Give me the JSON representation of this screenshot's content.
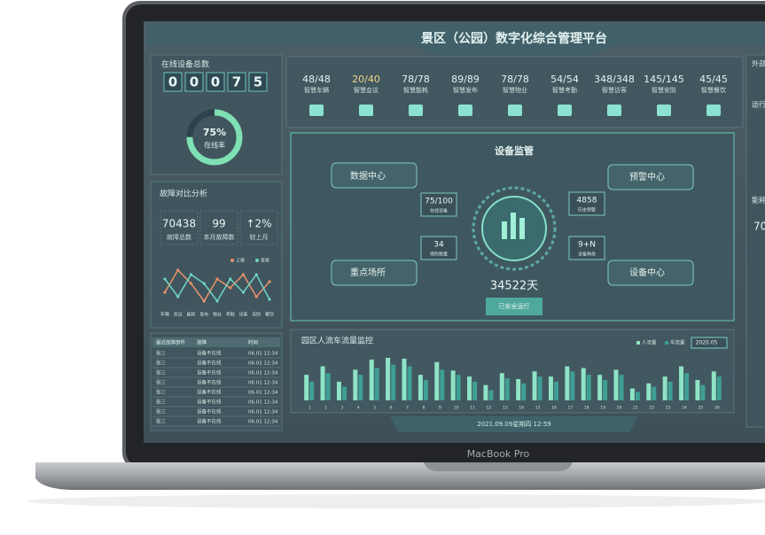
{
  "device": "MacBook Pro",
  "header": {
    "title": "景区（公园）数字化综合管理平台",
    "datetime": "2021.09.09星期四 12:59"
  },
  "online": {
    "title": "在线设备总数",
    "digits": [
      "0",
      "0",
      "0",
      "7",
      "5"
    ],
    "rate": {
      "value": 75,
      "label": "75%"
    },
    "rate_label": "在线率"
  },
  "stats": [
    {
      "count": "48/48",
      "label": "智慧车辆"
    },
    {
      "count": "20/40",
      "label": "智慧会议"
    },
    {
      "count": "78/78",
      "label": "智慧能耗"
    },
    {
      "count": "89/89",
      "label": "智慧发布"
    },
    {
      "count": "78/78",
      "label": "智慧物业"
    },
    {
      "count": "54/54",
      "label": "智慧考勤"
    },
    {
      "count": "348/348",
      "label": "智慧访客"
    },
    {
      "count": "145/145",
      "label": "智慧安防"
    },
    {
      "count": "45/45",
      "label": "智慧餐饮"
    }
  ],
  "faults": {
    "title": "故障对比分析",
    "kpis": [
      {
        "value": "70438",
        "label": "故障总数"
      },
      {
        "value": "99",
        "label": "本月故障数"
      },
      {
        "value": "↑2%",
        "label": "较上月"
      }
    ],
    "chart": {
      "type": "line",
      "categories": [
        "车辆",
        "会议",
        "能耗",
        "发布",
        "物业",
        "考勤",
        "访客",
        "安防",
        "餐饮"
      ],
      "series": [
        {
          "name": "上报",
          "color": "#e8936a",
          "values": [
            30,
            55,
            40,
            20,
            45,
            35,
            50,
            25,
            42
          ]
        },
        {
          "name": "查看",
          "color": "#6fd6c6",
          "values": [
            45,
            25,
            50,
            40,
            20,
            45,
            30,
            50,
            22
          ]
        }
      ]
    }
  },
  "monitor": {
    "title": "设备监管",
    "nodes": [
      "数据中心",
      "预警中心",
      "重点场所",
      "设备中心"
    ],
    "metrics": [
      {
        "value": "75/100",
        "label": "在线设备"
      },
      {
        "value": "34",
        "label": "场所数量"
      },
      {
        "value": "4858",
        "label": "历史预警"
      },
      {
        "value": "9+N",
        "label": "设备种类"
      }
    ],
    "days": "34522天",
    "days_label": "已安全运行"
  },
  "table": {
    "header": [
      "最近故障部件",
      "故障",
      "时间"
    ],
    "rows": [
      [
        "张三",
        "设备不在线",
        "06.01 12:34"
      ],
      [
        "张三",
        "设备不在线",
        "06.01 12:34"
      ],
      [
        "张三",
        "设备不在线",
        "06.01 12:34"
      ],
      [
        "张三",
        "设备不在线",
        "06.01 12:34"
      ],
      [
        "张三",
        "设备不在线",
        "06.01 12:34"
      ],
      [
        "张三",
        "设备不在线",
        "06.01 12:34"
      ],
      [
        "张三",
        "设备不在线",
        "06.01 12:34"
      ],
      [
        "张三",
        "设备不在线",
        "06.01 12:34"
      ]
    ]
  },
  "traffic": {
    "title": "园区人流车流量监控",
    "period": "2020.05",
    "chart": {
      "type": "bar",
      "categories": [
        "1",
        "2",
        "3",
        "4",
        "5",
        "6",
        "7",
        "8",
        "9",
        "10",
        "11",
        "12",
        "13",
        "14",
        "15",
        "16",
        "17",
        "18",
        "19",
        "20",
        "21",
        "22",
        "23",
        "24",
        "25",
        "26"
      ],
      "series": [
        {
          "name": "人流量",
          "color": "#8fe3c6",
          "values": [
            30,
            40,
            22,
            36,
            48,
            50,
            49,
            30,
            45,
            35,
            28,
            18,
            32,
            25,
            34,
            28,
            40,
            38,
            30,
            36,
            14,
            20,
            28,
            40,
            24,
            34
          ]
        },
        {
          "name": "车流量",
          "color": "#3f9f95",
          "values": [
            22,
            32,
            16,
            30,
            38,
            42,
            40,
            24,
            36,
            30,
            22,
            12,
            26,
            20,
            28,
            22,
            34,
            30,
            24,
            30,
            10,
            16,
            22,
            32,
            18,
            28
          ]
        }
      ]
    }
  },
  "side": {
    "labels": [
      "外部",
      "运行",
      "能耗"
    ],
    "value": "70"
  }
}
